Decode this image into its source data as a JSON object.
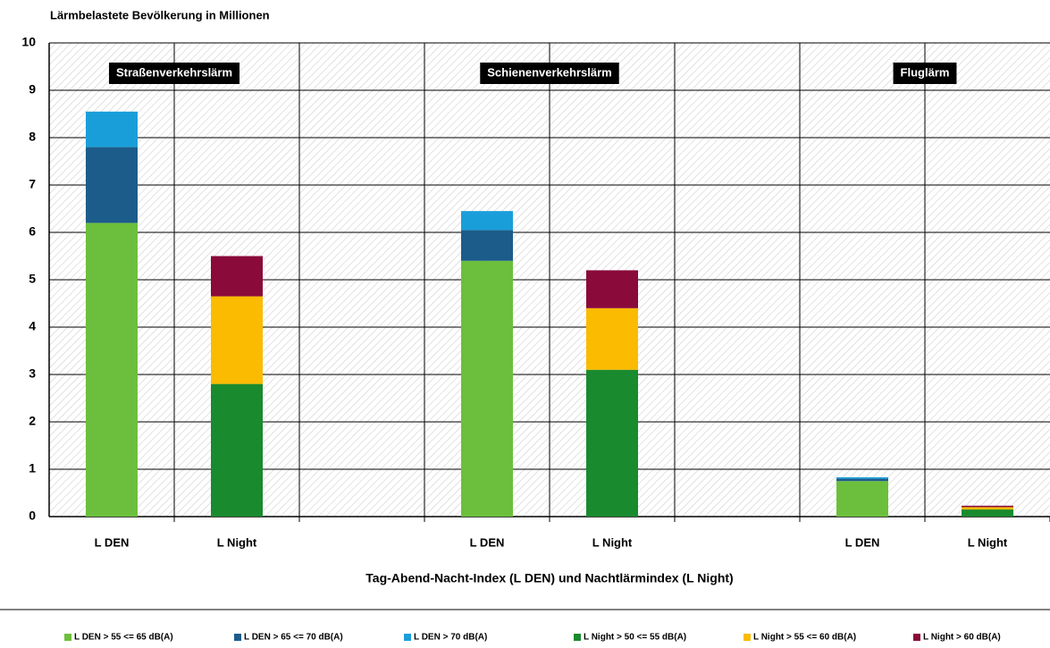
{
  "chart_data": {
    "type": "stacked_bar",
    "title": "Lärmbelastete Bevölkerung in Millionen",
    "x_label": "Tag-Abend-Nacht-Index (L DEN) und Nachtlärmindex (L Night)",
    "annotations": [
      "Straßenverkehrslärm",
      "Schienenverkehrslärm",
      "Fluglärm"
    ],
    "categories": [
      "L DEN",
      "L Night",
      null,
      "L DEN",
      "L Night",
      null,
      "L DEN",
      "L Night"
    ],
    "series": [
      {
        "name": "L DEN > 55 <= 65 dB(A)",
        "color": "#6cbf3c",
        "values": [
          6.2,
          null,
          null,
          5.4,
          null,
          null,
          0.75,
          null
        ]
      },
      {
        "name": "L DEN > 65 <= 70 dB(A)",
        "color": "#1c5c8a",
        "values": [
          1.6,
          null,
          null,
          0.65,
          null,
          null,
          0.05,
          null
        ]
      },
      {
        "name": "L DEN > 70 dB(A)",
        "color": "#1a9ed9",
        "values": [
          0.75,
          null,
          null,
          0.4,
          null,
          null,
          0.03,
          null
        ]
      },
      {
        "name": "L Night > 50 <= 55 dB(A)",
        "color": "#1a8a2e",
        "values": [
          null,
          2.8,
          null,
          null,
          3.1,
          null,
          null,
          0.15
        ]
      },
      {
        "name": "L Night > 55 <= 60 dB(A)",
        "color": "#fbbb00",
        "values": [
          null,
          1.85,
          null,
          null,
          1.3,
          null,
          null,
          0.05
        ]
      },
      {
        "name": "L Night > 60 dB(A)",
        "color": "#8a0a3a",
        "values": [
          null,
          0.85,
          null,
          null,
          0.8,
          null,
          null,
          0.03
        ]
      }
    ],
    "ylim": [
      0,
      10
    ],
    "yticks": [
      0,
      1,
      2,
      3,
      4,
      5,
      6,
      7,
      8,
      9,
      10
    ],
    "grid": true,
    "legend": "bottom"
  }
}
